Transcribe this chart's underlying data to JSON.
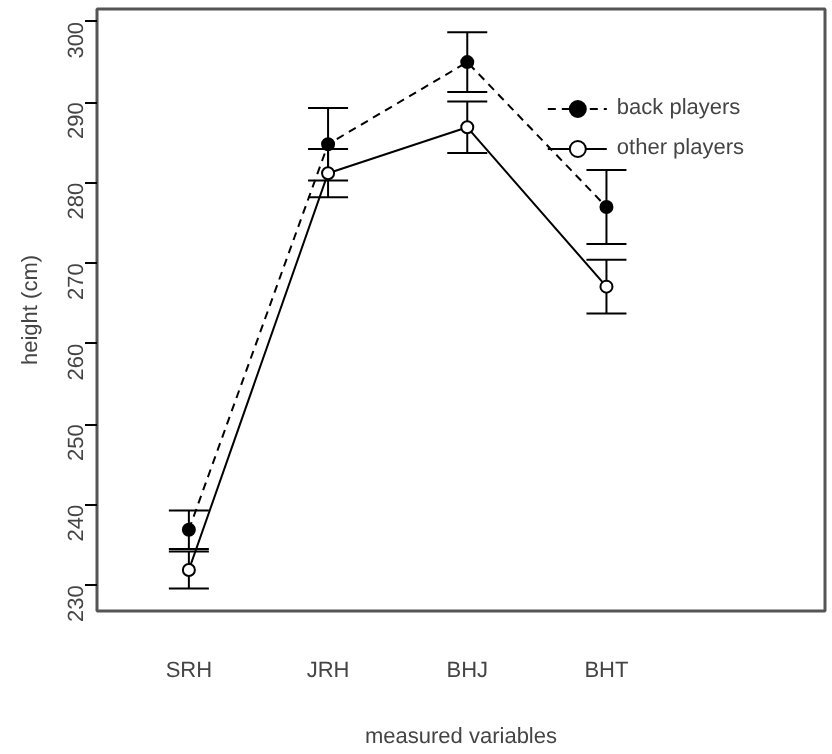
{
  "chart_data": {
    "type": "line",
    "xlabel": "measured variables",
    "ylabel": "height (cm)",
    "categories": [
      "SRH",
      "JRH",
      "BHJ",
      "BHT"
    ],
    "series": [
      {
        "name": "back players",
        "color": "#000000",
        "values": [
          236.9,
          284.8,
          295.0,
          277.0
        ],
        "errors": [
          2.4,
          4.5,
          3.7,
          4.6
        ],
        "line_style": "dashed",
        "marker": "circle"
      },
      {
        "name": "other players",
        "color": "#000000",
        "values": [
          231.9,
          281.2,
          286.9,
          267.1
        ],
        "errors": [
          2.3,
          3.0,
          3.2,
          3.35
        ],
        "line_style": "solid",
        "marker": "circle"
      }
    ],
    "ylim": [
      226.8,
      301.6
    ],
    "yticks": [
      230,
      240,
      250,
      260,
      270,
      280,
      290,
      300
    ],
    "grid": false,
    "legend": "top right"
  }
}
